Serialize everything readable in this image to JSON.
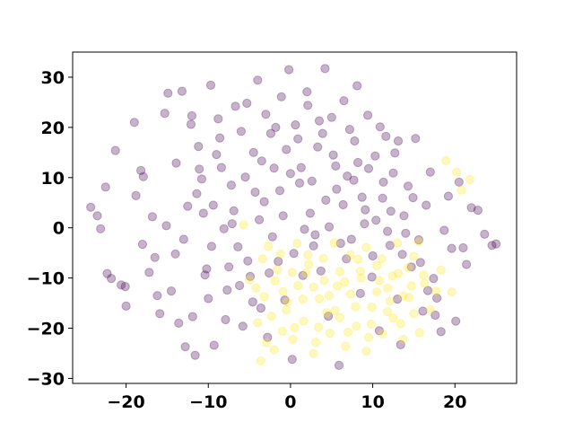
{
  "chart_data": {
    "type": "scatter",
    "title": "",
    "xlabel": "",
    "ylabel": "",
    "xlim": [
      -26.5,
      27.5
    ],
    "ylim": [
      -31,
      35
    ],
    "x_ticks": [
      -20,
      -10,
      0,
      10,
      20
    ],
    "x_tick_labels": [
      "−20",
      "−10",
      "0",
      "10",
      "20"
    ],
    "y_ticks": [
      -30,
      -20,
      -10,
      0,
      10,
      20,
      30
    ],
    "y_tick_labels": [
      "−30",
      "−20",
      "−10",
      "0",
      "10",
      "20",
      "30"
    ],
    "grid": false,
    "legend": "none",
    "marker_alpha": 0.3,
    "series": [
      {
        "color": "#440154",
        "points": [
          [
            -24.3,
            4.1
          ],
          [
            -23.5,
            2.4
          ],
          [
            -23.1,
            -0.2
          ],
          [
            -22.5,
            8.1
          ],
          [
            -22.3,
            -9.1
          ],
          [
            -21.8,
            -10.1
          ],
          [
            -21.3,
            15.4
          ],
          [
            -20.6,
            -11.4
          ],
          [
            -20.1,
            -11.7
          ],
          [
            -20.0,
            -15.6
          ],
          [
            -19.0,
            21.0
          ],
          [
            -18.8,
            6.4
          ],
          [
            -18.2,
            11.4
          ],
          [
            -18.0,
            -3.3
          ],
          [
            -17.2,
            -8.9
          ],
          [
            -16.8,
            2.2
          ],
          [
            -16.2,
            -13.5
          ],
          [
            -15.9,
            -17.1
          ],
          [
            -15.3,
            22.8
          ],
          [
            -14.9,
            26.8
          ],
          [
            -14.5,
            -12.6
          ],
          [
            -14.0,
            -5.2
          ],
          [
            -13.6,
            -19.0
          ],
          [
            -13.2,
            27.2
          ],
          [
            -12.8,
            -23.7
          ],
          [
            -12.5,
            4.3
          ],
          [
            -12.1,
            20.6
          ],
          [
            -11.6,
            -25.4
          ],
          [
            -11.2,
            16.2
          ],
          [
            -10.8,
            9.7
          ],
          [
            -10.4,
            -9.4
          ],
          [
            -10.0,
            -14.1
          ],
          [
            -9.7,
            28.4
          ],
          [
            -9.3,
            -23.4
          ],
          [
            -8.8,
            21.7
          ],
          [
            -8.4,
            12.0
          ],
          [
            -7.9,
            -18.3
          ],
          [
            -7.5,
            -7.8
          ],
          [
            -7.1,
            0.8
          ],
          [
            -6.7,
            24.2
          ],
          [
            -6.2,
            -11.5
          ],
          [
            -5.8,
            -19.6
          ],
          [
            -5.3,
            24.8
          ],
          [
            -4.9,
            -9.7
          ],
          [
            -4.5,
            15.0
          ],
          [
            -4.0,
            29.4
          ],
          [
            -3.6,
            -16.0
          ],
          [
            -3.2,
            5.2
          ],
          [
            -2.8,
            -21.8
          ],
          [
            -2.4,
            18.8
          ],
          [
            -2.0,
            11.9
          ],
          [
            -1.5,
            -6.7
          ],
          [
            -1.1,
            26.1
          ],
          [
            -0.7,
            -14.4
          ],
          [
            -0.2,
            31.5
          ],
          [
            0.2,
            -26.2
          ],
          [
            0.6,
            20.5
          ],
          [
            1.1,
            8.9
          ],
          [
            1.5,
            -9.5
          ],
          [
            2.0,
            27.1
          ],
          [
            2.4,
            2.9
          ],
          [
            2.8,
            -3.6
          ],
          [
            3.3,
            16.1
          ],
          [
            3.7,
            -8.6
          ],
          [
            4.2,
            31.7
          ],
          [
            4.6,
            -17.6
          ],
          [
            5.0,
            22.0
          ],
          [
            5.5,
            12.3
          ],
          [
            5.9,
            -27.4
          ],
          [
            6.4,
            4.6
          ],
          [
            6.8,
            -6.2
          ],
          [
            7.2,
            19.6
          ],
          [
            7.7,
            9.5
          ],
          [
            8.1,
            28.3
          ],
          [
            8.5,
            -13.1
          ],
          [
            9.0,
            0.8
          ],
          [
            9.4,
            22.4
          ],
          [
            9.9,
            -9.8
          ],
          [
            10.3,
            14.3
          ],
          [
            10.8,
            -20.5
          ],
          [
            11.2,
            5.9
          ],
          [
            11.6,
            18.2
          ],
          [
            12.1,
            -3.5
          ],
          [
            12.5,
            10.9
          ],
          [
            13.0,
            -14.2
          ],
          [
            13.4,
            -23.3
          ],
          [
            13.8,
            2.4
          ],
          [
            14.3,
            8.3
          ],
          [
            14.7,
            -7.8
          ],
          [
            15.2,
            17.8
          ],
          [
            15.6,
            -2.4
          ],
          [
            16.1,
            -16.6
          ],
          [
            16.5,
            4.5
          ],
          [
            17.0,
            11.1
          ],
          [
            17.4,
            -10.1
          ],
          [
            17.8,
            -14.0
          ],
          [
            18.3,
            -20.7
          ],
          [
            18.7,
            -0.5
          ],
          [
            19.2,
            6.3
          ],
          [
            19.6,
            -4.1
          ],
          [
            20.1,
            -18.6
          ],
          [
            20.5,
            9.1
          ],
          [
            21.0,
            -4.0
          ],
          [
            21.4,
            -7.3
          ],
          [
            22.0,
            4.0
          ],
          [
            22.8,
            3.5
          ],
          [
            23.6,
            -1.3
          ],
          [
            24.5,
            -3.5
          ],
          [
            25.0,
            -3.2
          ],
          [
            -17.9,
            10.2
          ],
          [
            -16.5,
            -5.9
          ],
          [
            -15.1,
            0.4
          ],
          [
            -13.9,
            12.9
          ],
          [
            -13.0,
            -2.3
          ],
          [
            -11.9,
            -17.7
          ],
          [
            -11.4,
            6.8
          ],
          [
            -10.6,
            2.9
          ],
          [
            -9.6,
            -3.7
          ],
          [
            -9.0,
            14.6
          ],
          [
            -8.1,
            -0.2
          ],
          [
            -7.2,
            8.5
          ],
          [
            -6.4,
            -3.8
          ],
          [
            -5.5,
            10.1
          ],
          [
            -4.6,
            -14.8
          ],
          [
            -3.8,
            1.6
          ],
          [
            -3.0,
            22.6
          ],
          [
            -2.2,
            -1.8
          ],
          [
            -1.3,
            7.4
          ],
          [
            -0.5,
            15.6
          ],
          [
            0.4,
            -5.1
          ],
          [
            1.3,
            12.0
          ],
          [
            2.1,
            24.4
          ],
          [
            3.0,
            -1.4
          ],
          [
            3.9,
            18.8
          ],
          [
            4.7,
            0.2
          ],
          [
            5.6,
            7.7
          ],
          [
            6.5,
            25.3
          ],
          [
            7.4,
            -2.3
          ],
          [
            8.2,
            13.0
          ],
          [
            9.1,
            3.6
          ],
          [
            10.0,
            -5.6
          ],
          [
            10.9,
            20.1
          ],
          [
            11.8,
            -0.7
          ],
          [
            12.7,
            14.9
          ],
          [
            13.6,
            -5.3
          ],
          [
            -12.0,
            22.3
          ],
          [
            -11.1,
            11.7
          ],
          [
            -10.2,
            -8.2
          ],
          [
            -9.4,
            4.5
          ],
          [
            -8.6,
            17.9
          ],
          [
            -7.7,
            -12.4
          ],
          [
            -6.9,
            3.4
          ],
          [
            -6.0,
            19.2
          ],
          [
            -5.2,
            -6.6
          ],
          [
            -4.3,
            7.1
          ],
          [
            -3.5,
            13.3
          ],
          [
            -2.6,
            -9.0
          ],
          [
            -1.8,
            20.0
          ],
          [
            -0.9,
            2.4
          ],
          [
            0.0,
            10.8
          ],
          [
            0.9,
            17.7
          ],
          [
            1.7,
            -0.3
          ],
          [
            2.6,
            9.3
          ],
          [
            3.5,
            21.3
          ],
          [
            4.3,
            5.5
          ],
          [
            5.2,
            14.5
          ],
          [
            6.1,
            -3.1
          ],
          [
            6.9,
            10.3
          ],
          [
            7.8,
            17.3
          ],
          [
            8.7,
            6.1
          ],
          [
            9.5,
            11.8
          ],
          [
            10.4,
            1.5
          ],
          [
            11.3,
            9.1
          ],
          [
            12.2,
            3.3
          ],
          [
            13.1,
            17.3
          ],
          [
            14.0,
            -1.1
          ],
          [
            14.9,
            6.0
          ],
          [
            15.8,
            -6.9
          ],
          [
            16.7,
            -12.5
          ],
          [
            17.6,
            -17.4
          ]
        ]
      },
      {
        "color": "#fde725",
        "points": [
          [
            -5.7,
            0.6
          ],
          [
            -5.0,
            -10.4
          ],
          [
            -4.2,
            -12.0
          ],
          [
            -3.6,
            -26.5
          ],
          [
            -2.9,
            -22.9
          ],
          [
            -2.3,
            -17.6
          ],
          [
            -1.6,
            -8.3
          ],
          [
            -1.0,
            -20.6
          ],
          [
            -0.4,
            -14.8
          ],
          [
            0.3,
            -22.2
          ],
          [
            0.9,
            -11.5
          ],
          [
            1.6,
            -18.6
          ],
          [
            2.2,
            -7.3
          ],
          [
            2.8,
            -25.0
          ],
          [
            3.5,
            -14.1
          ],
          [
            4.1,
            -10.5
          ],
          [
            4.8,
            -21.0
          ],
          [
            5.4,
            -16.5
          ],
          [
            6.0,
            -8.7
          ],
          [
            6.7,
            -23.6
          ],
          [
            7.3,
            -13.2
          ],
          [
            8.0,
            -19.6
          ],
          [
            8.6,
            -10.0
          ],
          [
            9.2,
            -24.6
          ],
          [
            9.9,
            -15.8
          ],
          [
            10.5,
            -7.5
          ],
          [
            11.2,
            -21.1
          ],
          [
            11.8,
            -12.0
          ],
          [
            12.5,
            -18.0
          ],
          [
            13.1,
            -9.1
          ],
          [
            13.7,
            -22.2
          ],
          [
            14.4,
            -13.9
          ],
          [
            15.0,
            -5.7
          ],
          [
            15.7,
            -20.9
          ],
          [
            16.3,
            -11.1
          ],
          [
            17.0,
            -16.3
          ],
          [
            17.7,
            -12.6
          ],
          [
            18.3,
            -8.4
          ],
          [
            18.9,
            13.4
          ],
          [
            20.2,
            11.1
          ],
          [
            19.6,
            -12.8
          ],
          [
            20.8,
            7.5
          ],
          [
            21.8,
            9.6
          ],
          [
            -3.4,
            -6.2
          ],
          [
            -2.7,
            -3.7
          ],
          [
            -1.9,
            -10.6
          ],
          [
            -1.2,
            -5.2
          ],
          [
            -0.5,
            -16.4
          ],
          [
            0.2,
            -8.9
          ],
          [
            0.8,
            -3.1
          ],
          [
            1.5,
            -14.2
          ],
          [
            2.1,
            -5.4
          ],
          [
            2.8,
            -11.8
          ],
          [
            3.4,
            -19.8
          ],
          [
            4.0,
            -6.1
          ],
          [
            4.7,
            -13.5
          ],
          [
            5.3,
            -3.0
          ],
          [
            6.0,
            -17.9
          ],
          [
            6.6,
            -10.8
          ],
          [
            7.3,
            -5.4
          ],
          [
            7.9,
            -15.7
          ],
          [
            8.5,
            -8.7
          ],
          [
            9.2,
            -3.9
          ],
          [
            9.8,
            -19.2
          ],
          [
            10.5,
            -12.8
          ],
          [
            11.1,
            -6.2
          ],
          [
            11.8,
            -16.7
          ],
          [
            12.4,
            -9.6
          ],
          [
            13.0,
            -3.0
          ],
          [
            13.7,
            -13.6
          ],
          [
            14.3,
            -7.9
          ],
          [
            15.0,
            -17.1
          ],
          [
            15.6,
            -2.8
          ],
          [
            16.2,
            -9.4
          ],
          [
            -4.0,
            -18.9
          ],
          [
            -3.2,
            -13.7
          ],
          [
            -2.0,
            -24.3
          ],
          [
            -0.9,
            -12.7
          ],
          [
            0.5,
            -19.9
          ],
          [
            1.9,
            -9.0
          ],
          [
            3.1,
            -22.8
          ],
          [
            4.4,
            -16.9
          ],
          [
            5.7,
            -11.6
          ],
          [
            7.0,
            -20.8
          ],
          [
            8.2,
            -6.3
          ],
          [
            9.5,
            -21.8
          ],
          [
            10.8,
            -10.5
          ],
          [
            12.1,
            -14.6
          ],
          [
            13.4,
            -19.1
          ],
          [
            14.7,
            -11.6
          ]
        ]
      }
    ]
  }
}
